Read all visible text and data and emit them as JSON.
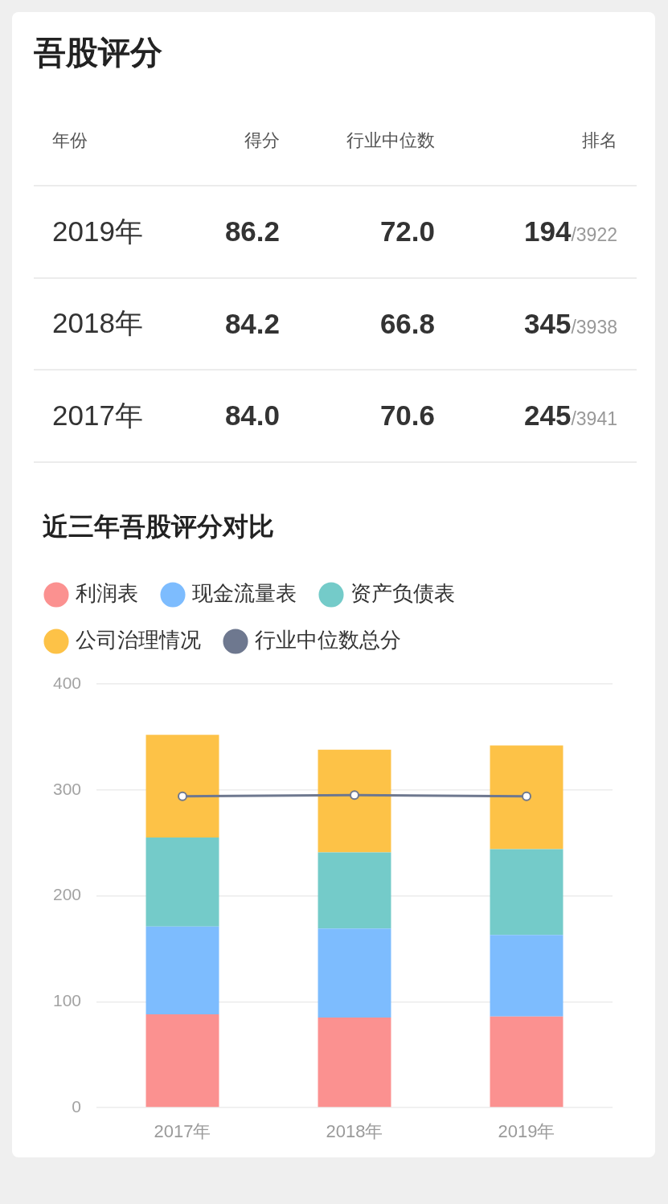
{
  "chart_data": [
    {
      "type": "other",
      "title": "吾股评分",
      "categories": [
        "年份",
        "得分",
        "行业中位数",
        "排名"
      ],
      "annotations": [
        "2019年",
        "86.2",
        "72.0",
        "194/3922",
        "2018年",
        "84.2",
        "66.8",
        "345/3938",
        "2017年",
        "84.0",
        "70.6",
        "245/3941"
      ]
    },
    {
      "type": "bar",
      "title": "近三年吾股评分对比",
      "categories": [
        "2017年",
        "2018年",
        "2019年"
      ],
      "stacked": true,
      "series": [
        {
          "name": "利润表",
          "color": "#fb9190",
          "values": [
            88,
            85,
            86
          ]
        },
        {
          "name": "现金流量表",
          "color": "#7dbcfe",
          "values": [
            83,
            84,
            77
          ]
        },
        {
          "name": "资产负债表",
          "color": "#74cbc9",
          "values": [
            84,
            72,
            81
          ]
        },
        {
          "name": "公司治理情况",
          "color": "#fdc247",
          "values": [
            97,
            97,
            98
          ]
        },
        {
          "name": "行业中位数总分",
          "color": "#6e788f",
          "type": "line",
          "marker": "circle",
          "values": [
            294,
            295,
            294
          ]
        }
      ],
      "ylim": [
        0,
        400
      ],
      "yticks": [
        0,
        100,
        200,
        300,
        400
      ],
      "grid": "y",
      "legend": "top left"
    }
  ]
}
